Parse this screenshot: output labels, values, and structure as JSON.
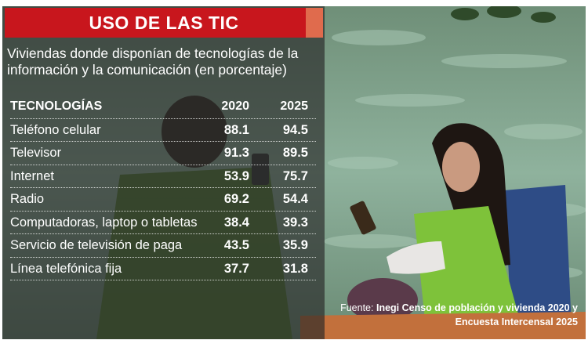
{
  "title": "USO DE LAS TIC",
  "subtitle": "Viviendas donde disponían de tecnologías de la información y la comunicación (en porcentaje)",
  "table": {
    "headers": [
      "TECNOLOGÍAS",
      "2020",
      "2025"
    ],
    "rows": [
      {
        "label": "Teléfono celular",
        "y2020": "88.1",
        "y2025": "94.5"
      },
      {
        "label": "Televisor",
        "y2020": "91.3",
        "y2025": "89.5"
      },
      {
        "label": "Internet",
        "y2020": "53.9",
        "y2025": "75.7"
      },
      {
        "label": "Radio",
        "y2020": "69.2",
        "y2025": "54.4"
      },
      {
        "label": "Computadoras, laptop o tabletas",
        "y2020": "38.4",
        "y2025": "39.3"
      },
      {
        "label": "Servicio de televisión de paga",
        "y2020": "43.5",
        "y2025": "35.9"
      },
      {
        "label": "Línea telefónica fija",
        "y2020": "37.7",
        "y2025": "31.8"
      }
    ]
  },
  "source": {
    "label": "Fuente:",
    "line1": "Inegi Censo de población y vivienda 2020 y",
    "line2": "Encuesta Intercensal 2025"
  },
  "colors": {
    "title_bg": "#c8161d",
    "panel": "#3a3a3a",
    "water": "#7fa58e"
  }
}
